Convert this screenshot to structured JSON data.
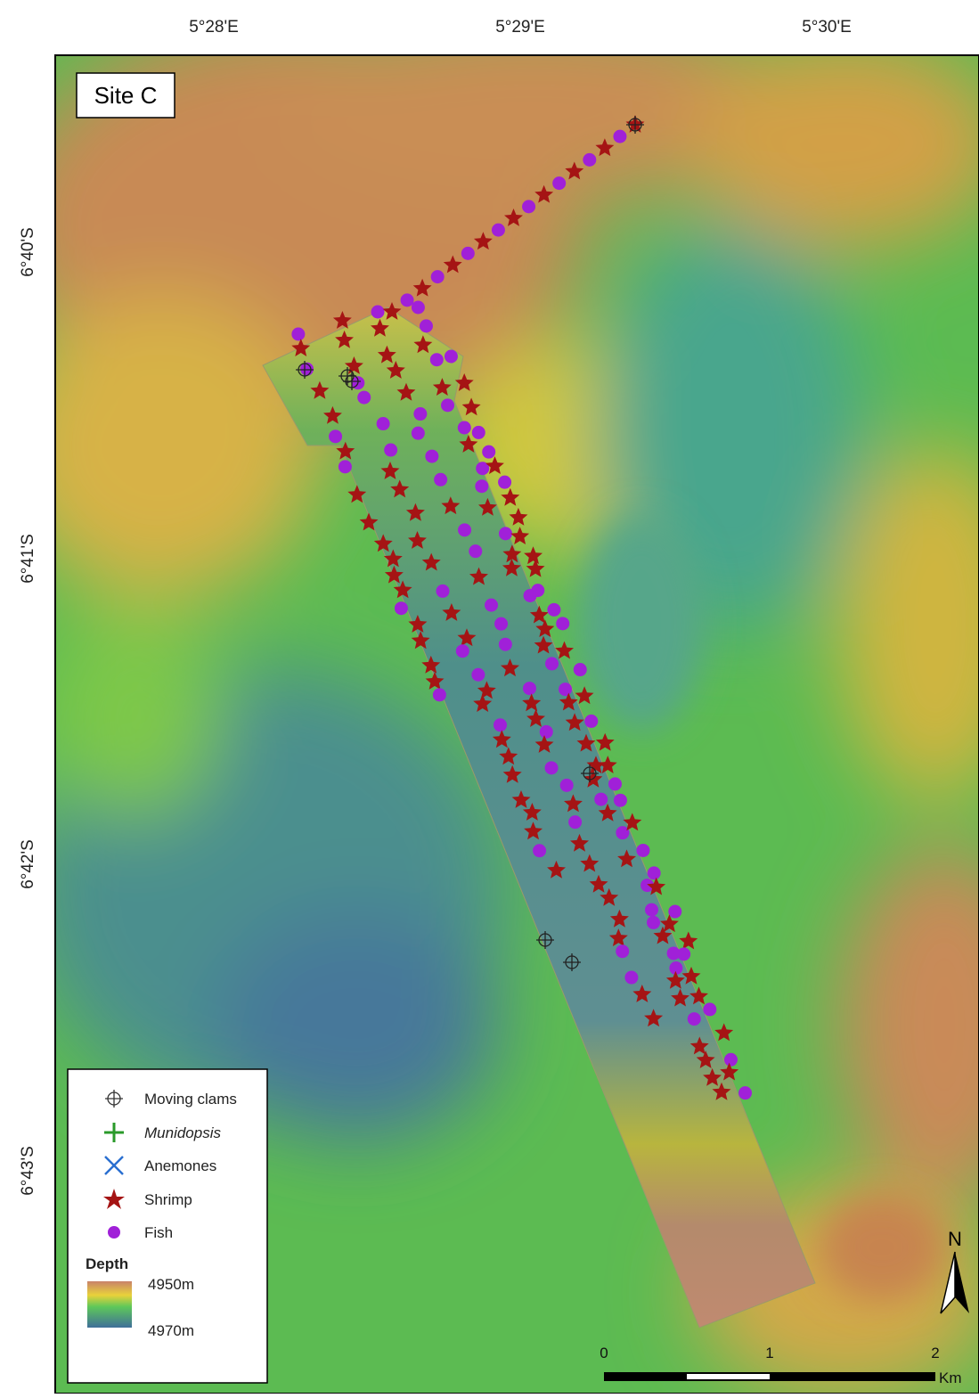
{
  "map": {
    "title": "Site C",
    "longitude_labels": [
      "5°28'E",
      "5°29'E",
      "5°30'E"
    ],
    "latitude_labels": [
      "6°40'S",
      "6°41'S",
      "6°42'S",
      "6°43'S"
    ],
    "legend": {
      "items": [
        "Moving clams",
        "Munidopsis",
        "Anemones",
        "Shrimp",
        "Fish"
      ],
      "depth_title": "Depth",
      "depth_labels": [
        "4950m",
        "4970m"
      ]
    },
    "north": "N",
    "scale": {
      "labels": [
        "0",
        "1",
        "2"
      ],
      "unit": "Km"
    }
  }
}
